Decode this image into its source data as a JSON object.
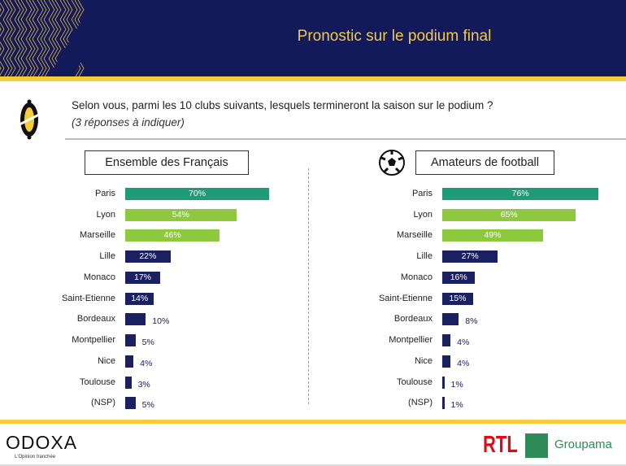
{
  "header": {
    "title": "Pronostic sur le podium final"
  },
  "question": {
    "text": "Selon vous, parmi les 10 clubs suivants, lesquels termineront la saison sur le podium ?",
    "note": "(3 réponses à indiquer)"
  },
  "colors": {
    "navy": "#1b2060",
    "teal": "#1f9b78",
    "green": "#8dc83f",
    "yellow": "#f5cc3a"
  },
  "chart_data": [
    {
      "type": "bar",
      "orientation": "horizontal",
      "title": "Ensemble des Français",
      "categories": [
        "Paris",
        "Lyon",
        "Marseille",
        "Lille",
        "Monaco",
        "Saint-Etienne",
        "Bordeaux",
        "Montpellier",
        "Nice",
        "Toulouse",
        "(NSP)"
      ],
      "values": [
        70,
        54,
        46,
        22,
        17,
        14,
        10,
        5,
        4,
        3,
        5
      ],
      "unit": "%"
    },
    {
      "type": "bar",
      "orientation": "horizontal",
      "title": "Amateurs de football",
      "categories": [
        "Paris",
        "Lyon",
        "Marseille",
        "Lille",
        "Monaco",
        "Saint-Etienne",
        "Bordeaux",
        "Montpellier",
        "Nice",
        "Toulouse",
        "(NSP)"
      ],
      "values": [
        76,
        65,
        49,
        27,
        16,
        15,
        8,
        4,
        4,
        1,
        1
      ],
      "unit": "%"
    }
  ],
  "footer": {
    "brand": "ODOXA",
    "tagline": "L'Opinion tranchée",
    "partner1": "RTL",
    "partner2": "Groupama"
  }
}
